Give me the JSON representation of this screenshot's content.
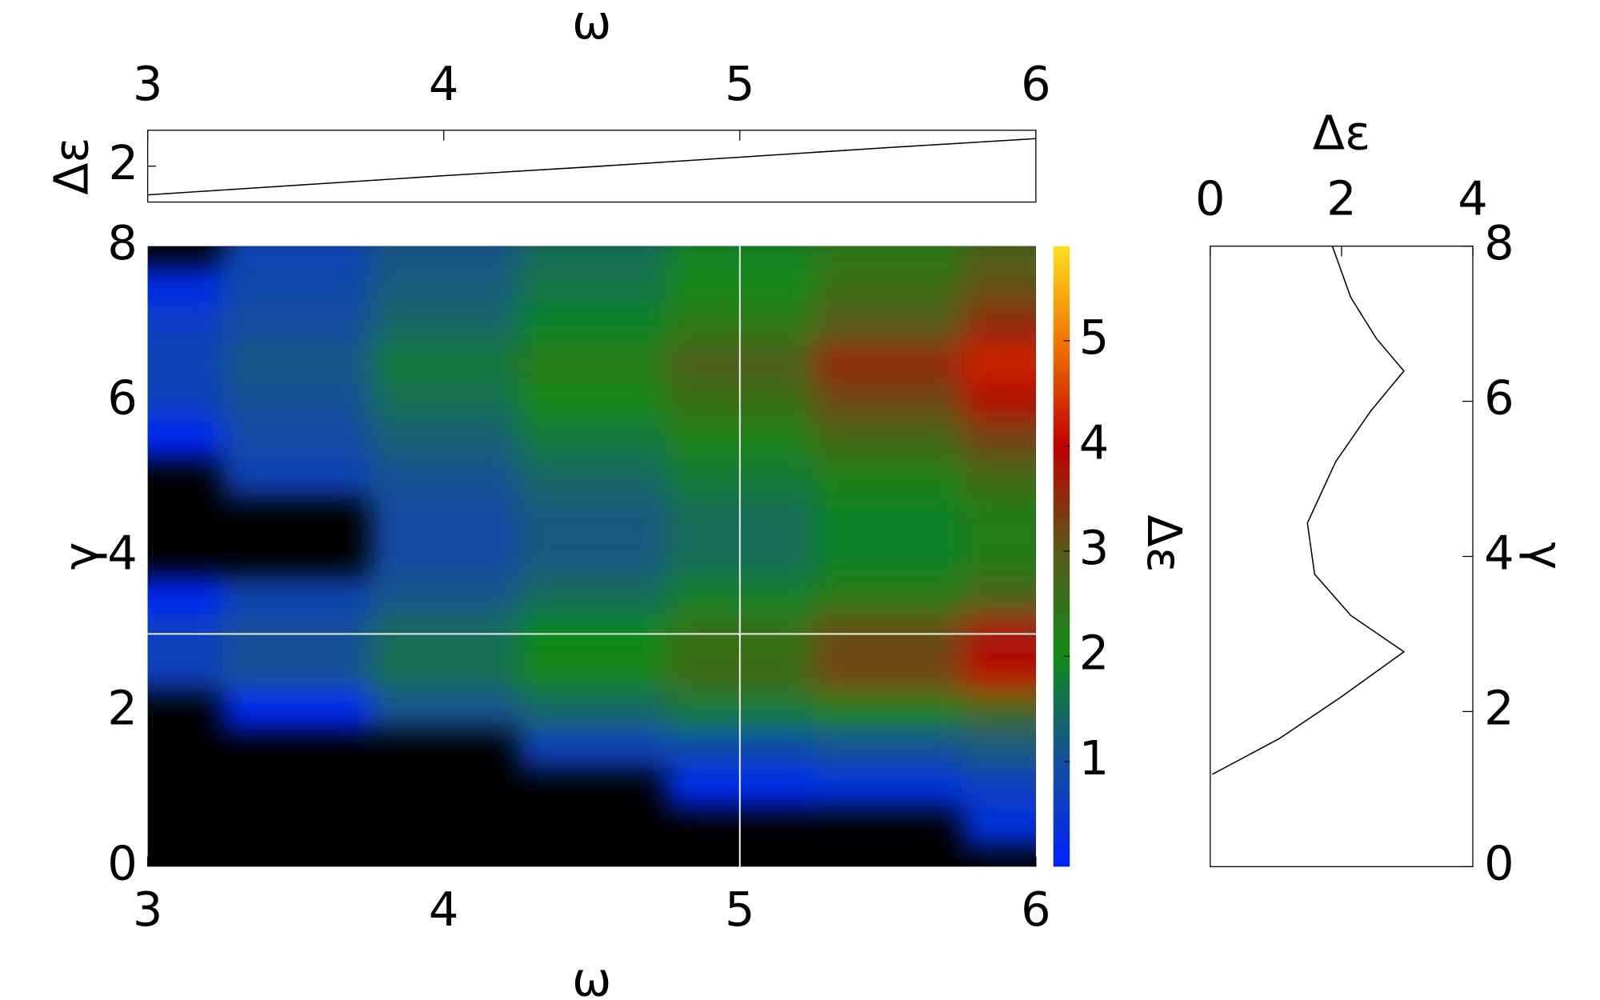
{
  "chart_data": [
    {
      "type": "line",
      "x_label": "ω",
      "y_label": "Δε",
      "x": [
        3,
        3.5,
        4,
        4.5,
        5,
        5.5,
        6
      ],
      "values": [
        1.52,
        1.68,
        1.84,
        1.99,
        2.15,
        2.31,
        2.46
      ],
      "xlim": [
        3,
        6
      ],
      "xticks": [
        3,
        4,
        5,
        6
      ],
      "ylim": [
        1.4,
        2.6
      ],
      "yticks": [
        2
      ],
      "color": "#000000"
    },
    {
      "type": "heatmap",
      "x_label": "ω",
      "y_label": "γ",
      "x": [
        3,
        3.5,
        4,
        4.5,
        5,
        5.5,
        6
      ],
      "y": [
        0,
        0.5,
        1,
        1.5,
        2,
        2.5,
        3,
        3.5,
        4,
        4.5,
        5,
        5.5,
        6,
        6.5,
        7,
        7.5,
        8
      ],
      "values": [
        [
          null,
          null,
          null,
          null,
          null,
          null,
          null
        ],
        [
          null,
          null,
          null,
          null,
          null,
          null,
          0.3
        ],
        [
          null,
          null,
          null,
          null,
          0.15,
          0.3,
          0.6
        ],
        [
          null,
          null,
          null,
          0.64,
          0.8,
          1.0,
          1.2
        ],
        [
          null,
          0.1,
          1.05,
          1.4,
          1.75,
          2.19,
          2.63
        ],
        [
          0.65,
          1.04,
          1.56,
          2.08,
          2.6,
          3.25,
          3.9
        ],
        [
          0.63,
          1.0,
          1.5,
          2.0,
          2.5,
          3.13,
          3.75
        ],
        [
          0.1,
          0.74,
          1.11,
          1.48,
          1.85,
          2.31,
          2.78
        ],
        [
          null,
          null,
          0.9,
          1.2,
          1.5,
          1.88,
          2.25
        ],
        [
          null,
          null,
          0.9,
          1.2,
          1.5,
          1.88,
          2.25
        ],
        [
          null,
          0.7,
          1.05,
          1.4,
          1.75,
          2.19,
          2.63
        ],
        [
          0.1,
          0.86,
          1.29,
          1.72,
          2.15,
          2.69,
          3.23
        ],
        [
          0.64,
          1.02,
          1.53,
          2.04,
          2.55,
          3.19,
          3.83
        ],
        [
          0.71,
          1.14,
          1.71,
          2.28,
          2.85,
          3.56,
          4.28
        ],
        [
          0.59,
          0.94,
          1.41,
          1.88,
          2.35,
          2.94,
          3.53
        ],
        [
          0.2,
          0.82,
          1.23,
          1.64,
          2.05,
          2.56,
          3.08
        ],
        [
          null,
          0.74,
          1.12,
          1.49,
          1.86,
          2.33,
          2.79
        ]
      ],
      "xlim": [
        3,
        6
      ],
      "xticks": [
        3,
        4,
        5,
        6
      ],
      "ylim": [
        0,
        8
      ],
      "yticks": [
        0,
        2,
        4,
        6,
        8
      ],
      "zlim": [
        0,
        5.9
      ],
      "zticks": [
        1,
        2,
        3,
        4,
        5
      ],
      "colorbar_label": "Δε",
      "colorscale": [
        [
          0,
          "#0022ff"
        ],
        [
          1,
          "#15509a"
        ],
        [
          2,
          "#118a18"
        ],
        [
          3,
          "#5a5a1a"
        ],
        [
          4,
          "#c00000"
        ],
        [
          5,
          "#f07800"
        ],
        [
          5.9,
          "#ffe020"
        ]
      ],
      "null_color": "#000000",
      "crosshair": {
        "x": 5,
        "y": 3
      },
      "crosshair_color": "#ffffff"
    },
    {
      "type": "profile",
      "x_label": "Δε",
      "y_label": "γ",
      "y": [
        8,
        7.34,
        6.81,
        6.39,
        5.88,
        5.22,
        4.43,
        3.77,
        3.24,
        2.77,
        2.18,
        1.65,
        1.19
      ],
      "values": [
        1.86,
        2.14,
        2.53,
        2.95,
        2.45,
        1.91,
        1.48,
        1.59,
        2.14,
        2.95,
        1.98,
        1.05,
        0.03
      ],
      "xlim": [
        0,
        4
      ],
      "xticks": [
        0,
        2,
        4
      ],
      "ylim": [
        0,
        8
      ],
      "yticks": [
        0,
        2,
        4,
        6,
        8
      ],
      "color": "#000000"
    }
  ]
}
